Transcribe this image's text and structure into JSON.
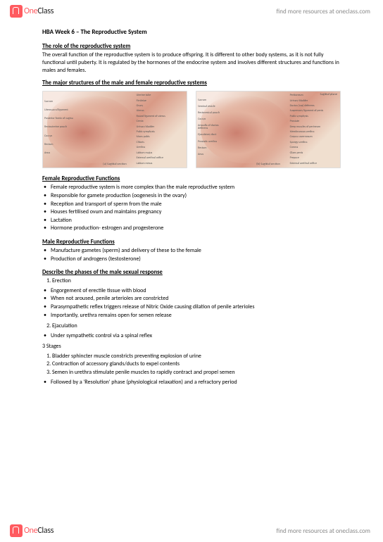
{
  "brand": {
    "one": "One",
    "class": "Class",
    "tagline": "find more resources at oneclass.com"
  },
  "doc": {
    "title": "HBA Week 6 – The Reproductive System",
    "s1": {
      "head": "The role of the reproductive system",
      "body": "The overall function of the reproductive system is to produce offspring. It is different to other body systems, as it is not fully functional until puberty. It is regulated by the hormones of the endocrine system and involves different structures and functions in males and females."
    },
    "s2": {
      "head": "The major structures of the male and female reproductive systems"
    },
    "diagram": {
      "female": {
        "top": "Sagittal plane",
        "left": [
          "Sacrum",
          "Uterosacral ligament",
          "Posterior fornix of vagina",
          "Rectouterine pouch",
          "Coccyx",
          "Rectum",
          "Anus"
        ],
        "right": [
          "Uterine tube",
          "Fimbriae",
          "Ovary",
          "Uterus",
          "Round ligament of uterus",
          "Cervix",
          "Urinary bladder",
          "Pubic symphysis",
          "Mons pubis",
          "Clitoris",
          "Urethra",
          "Labium majus",
          "External urethral orifice",
          "Labium minus"
        ],
        "bottom": "(a) Sagittal section"
      },
      "male": {
        "top": "Sagittal plane",
        "left": [
          "Sacrum",
          "Seminal vesicle",
          "Rectovesical pouch",
          "Coccyx",
          "Ampulla of ductus deferens",
          "Ejaculatory duct",
          "Prostatic urethra",
          "Rectum",
          "Anus"
        ],
        "right": [
          "Peritoneum",
          "Urinary bladder",
          "Ductus (vas) deferens",
          "Suspensory ligament of penis",
          "Pubic symphysis",
          "Prostate",
          "Deep muscles of perineum",
          "Membranous urethra",
          "Corpus cavernosum",
          "Spongy urethra",
          "Corona",
          "Glans penis",
          "Prepuce",
          "External urethral orifice"
        ],
        "bottomLeft": [
          "Bulb of penis",
          "Epididymis",
          "Testis",
          "Scrotum"
        ],
        "bottom": "(b) Sagittal section"
      }
    },
    "s3": {
      "head": "Female Reproductive Functions",
      "items": [
        "Female reproductive system is more complex than the male reproductive system",
        "Responsible for gamete production (oogenesis in the ovary)",
        "Reception and transport of sperm from the male",
        "Houses fertilised ovum and maintains pregnancy",
        "Lactation",
        "Hormone production- estrogen and progesterone"
      ]
    },
    "s4": {
      "head": "Male Reproductive Functions",
      "items": [
        "Manufacture gametes (sperm) and delivery of these to the female",
        "Production of androgens (testosterone)"
      ]
    },
    "s5": {
      "head": "Describe the phases of the male sexual response",
      "num1": "Erection",
      "b1": [
        "Engorgement of erectile tissue with blood",
        "When not aroused, penile arterioles are constricted",
        "Parasympathetic reflex triggers release of Nitric Oxide causing dilation of penile arterioles",
        "Importantly, urethra remains open for semen release"
      ],
      "num2": "Ejaculation",
      "b2": [
        "Under sympathetic control via a spinal reflex"
      ],
      "stages_head": "3 Stages",
      "stages": [
        "Bladder sphincter muscle constricts preventing explosion of urine",
        "Contraction of accessory glands/ducts to expel contents",
        "Semen in urethra stimulate penile muscles to rapidly contract and propel semen"
      ],
      "b3": [
        "Followed by a 'Resolution' phase (physiological relaxation) and a refractory period"
      ]
    }
  }
}
